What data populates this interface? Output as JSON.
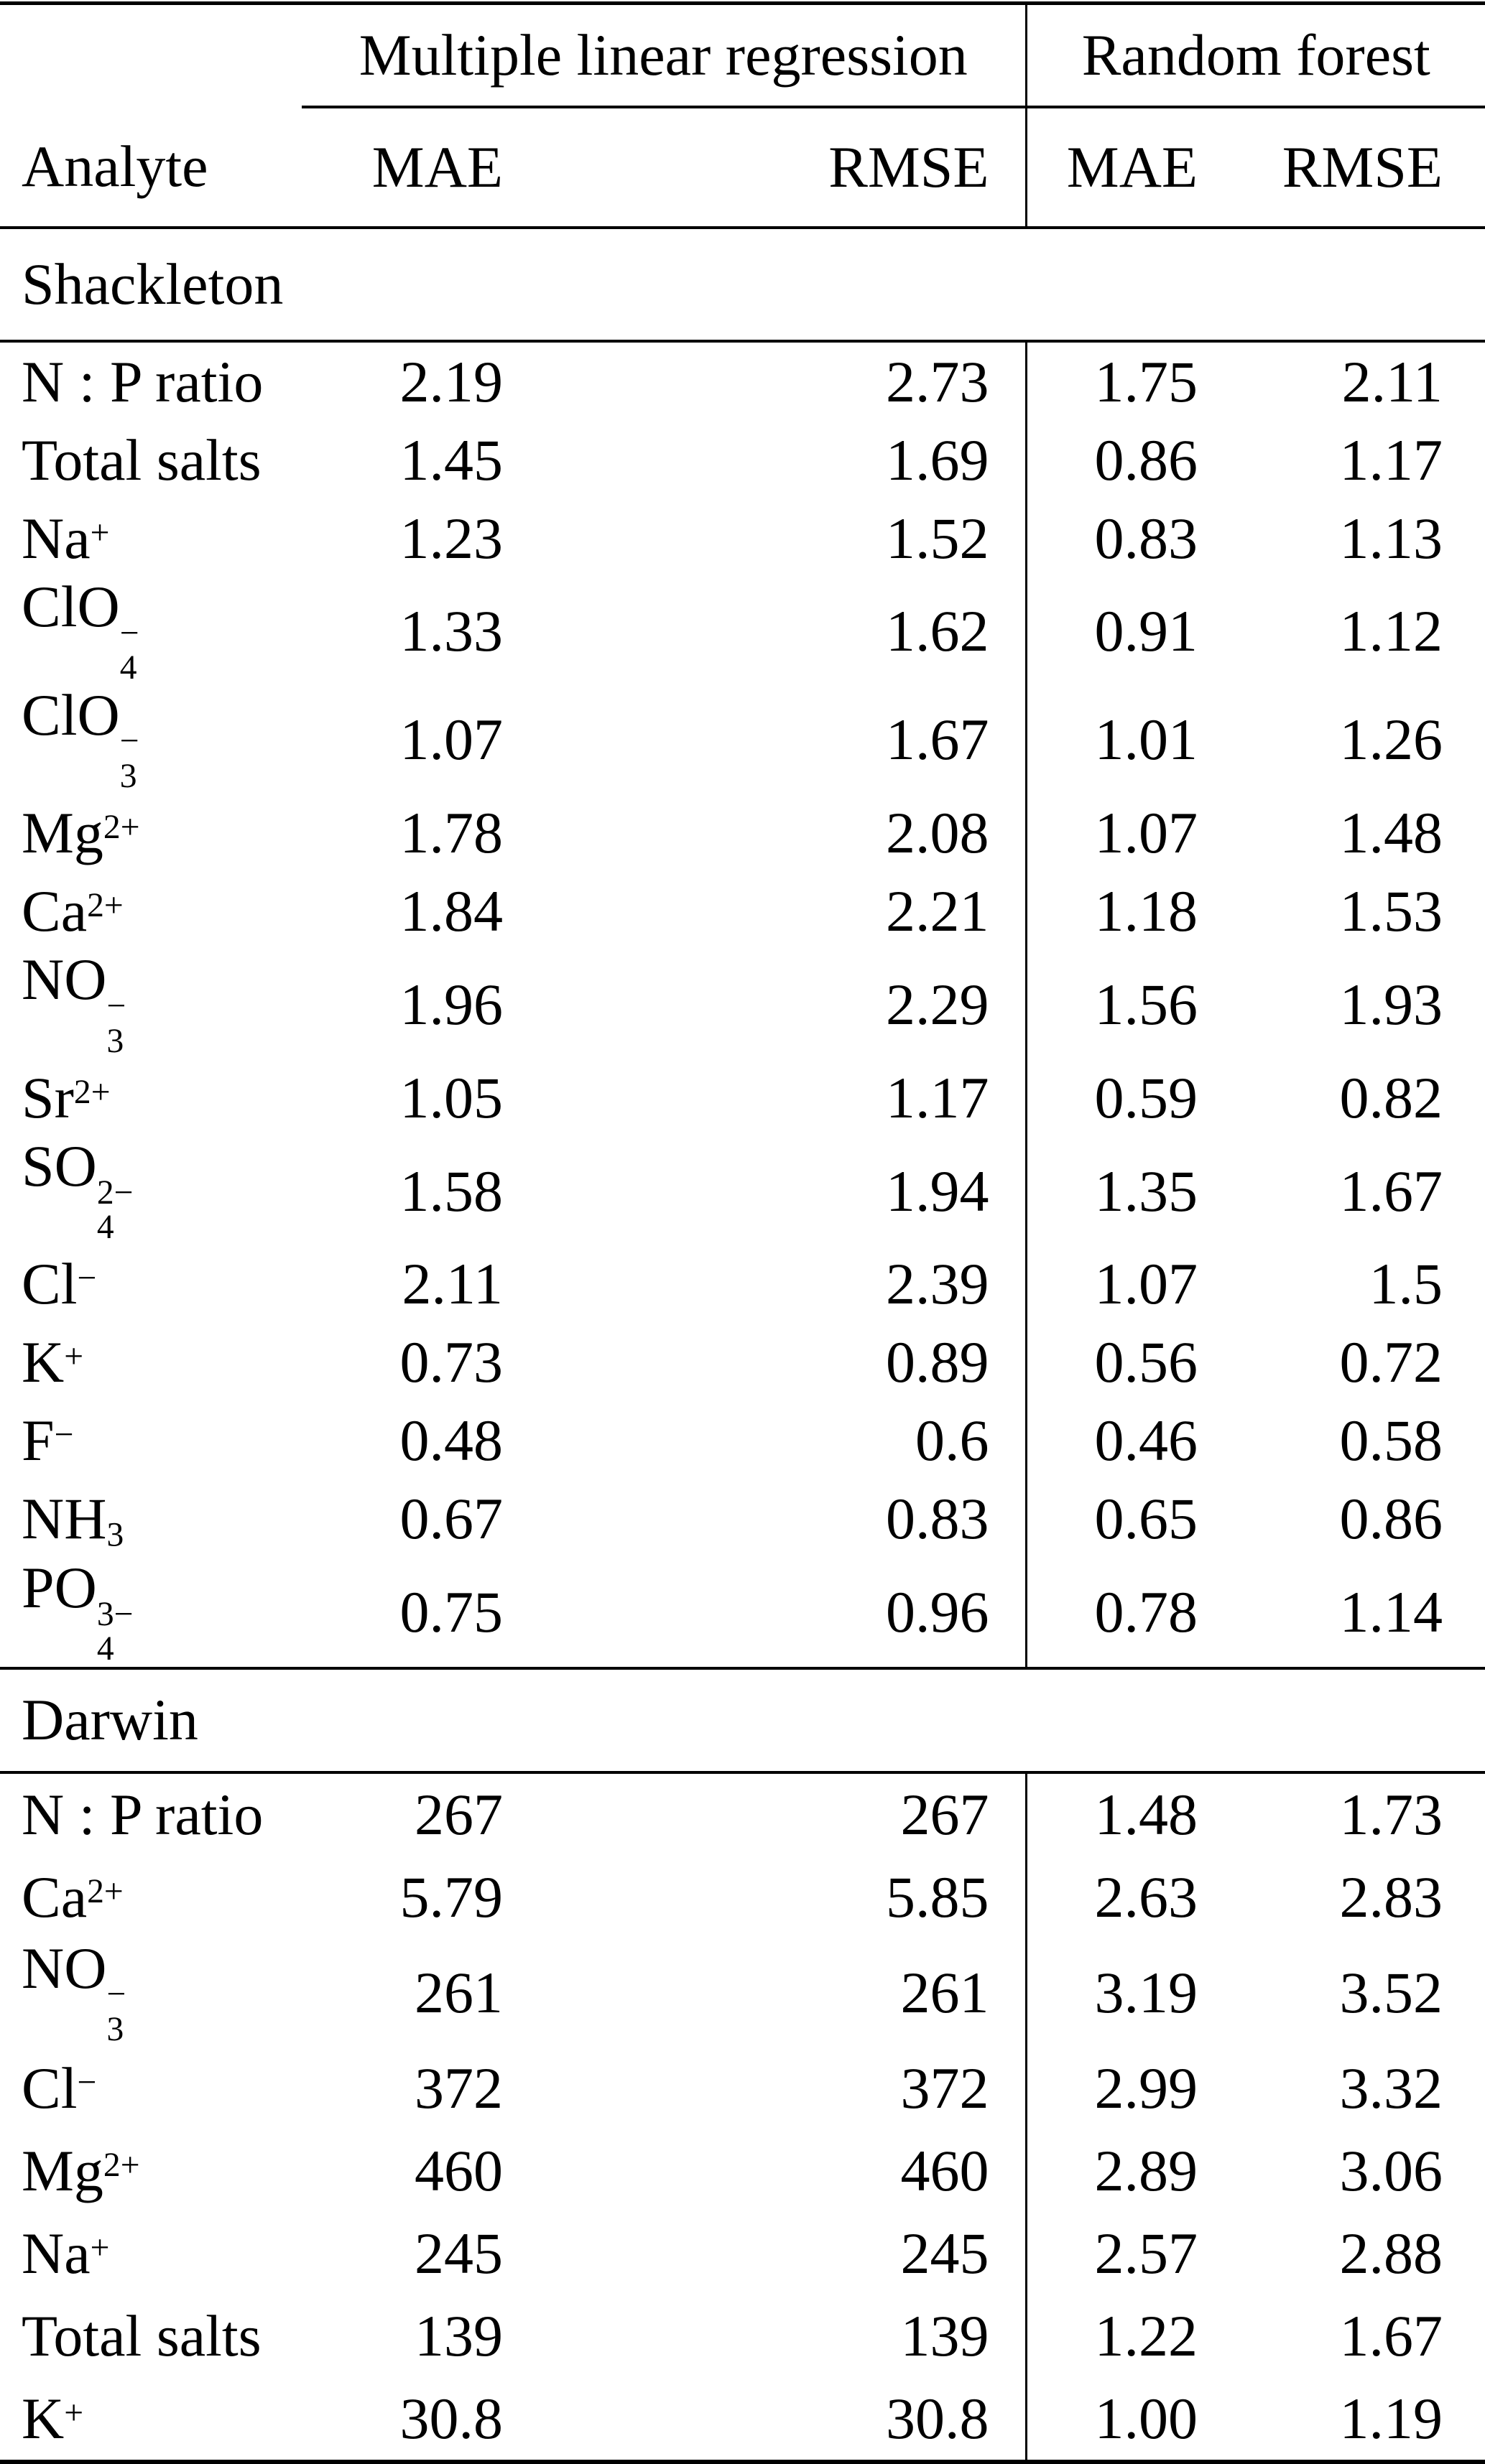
{
  "table": {
    "group_headers": {
      "mlr": "Multiple linear regression",
      "rf": "Random forest"
    },
    "col_headers": {
      "analyte": "Analyte",
      "mlr_mae": "MAE",
      "mlr_rmse": "RMSE",
      "rf_mae": "MAE",
      "rf_rmse": "RMSE"
    },
    "colors": {
      "text": "#000000",
      "background": "#ffffff",
      "rule": "#000000"
    },
    "sections": [
      {
        "label": "Shackleton",
        "rows": [
          {
            "analyte": {
              "text": "N : P ratio"
            },
            "mlr_mae": "2.19",
            "mlr_rmse": "2.73",
            "rf_mae": "1.75",
            "rf_rmse": "2.11"
          },
          {
            "analyte": {
              "text": "Total salts"
            },
            "mlr_mae": "1.45",
            "mlr_rmse": "1.69",
            "rf_mae": "0.86",
            "rf_rmse": "1.17"
          },
          {
            "analyte": {
              "text": "Na",
              "sup": "+"
            },
            "mlr_mae": "1.23",
            "mlr_rmse": "1.52",
            "rf_mae": "0.83",
            "rf_rmse": "1.13"
          },
          {
            "analyte": {
              "text": "ClO",
              "sub": "4",
              "sup": "−"
            },
            "mlr_mae": "1.33",
            "mlr_rmse": "1.62",
            "rf_mae": "0.91",
            "rf_rmse": "1.12"
          },
          {
            "analyte": {
              "text": "ClO",
              "sub": "3",
              "sup": "−"
            },
            "mlr_mae": "1.07",
            "mlr_rmse": "1.67",
            "rf_mae": "1.01",
            "rf_rmse": "1.26"
          },
          {
            "analyte": {
              "text": "Mg",
              "sup": "2+"
            },
            "mlr_mae": "1.78",
            "mlr_rmse": "2.08",
            "rf_mae": "1.07",
            "rf_rmse": "1.48"
          },
          {
            "analyte": {
              "text": "Ca",
              "sup": "2+"
            },
            "mlr_mae": "1.84",
            "mlr_rmse": "2.21",
            "rf_mae": "1.18",
            "rf_rmse": "1.53"
          },
          {
            "analyte": {
              "text": "NO",
              "sub": "3",
              "sup": "−"
            },
            "mlr_mae": "1.96",
            "mlr_rmse": "2.29",
            "rf_mae": "1.56",
            "rf_rmse": "1.93"
          },
          {
            "analyte": {
              "text": "Sr",
              "sup": "2+"
            },
            "mlr_mae": "1.05",
            "mlr_rmse": "1.17",
            "rf_mae": "0.59",
            "rf_rmse": "0.82"
          },
          {
            "analyte": {
              "text": "SO",
              "sub": "4",
              "sup": "2−"
            },
            "mlr_mae": "1.58",
            "mlr_rmse": "1.94",
            "rf_mae": "1.35",
            "rf_rmse": "1.67"
          },
          {
            "analyte": {
              "text": "Cl",
              "sup": "−"
            },
            "mlr_mae": "2.11",
            "mlr_rmse": "2.39",
            "rf_mae": "1.07",
            "rf_rmse": "1.5"
          },
          {
            "analyte": {
              "text": "K",
              "sup": "+"
            },
            "mlr_mae": "0.73",
            "mlr_rmse": "0.89",
            "rf_mae": "0.56",
            "rf_rmse": "0.72"
          },
          {
            "analyte": {
              "text": "F",
              "sup": "−"
            },
            "mlr_mae": "0.48",
            "mlr_rmse": "0.6",
            "rf_mae": "0.46",
            "rf_rmse": "0.58"
          },
          {
            "analyte": {
              "text": "NH",
              "sub": "3"
            },
            "mlr_mae": "0.67",
            "mlr_rmse": "0.83",
            "rf_mae": "0.65",
            "rf_rmse": "0.86"
          },
          {
            "analyte": {
              "text": "PO",
              "sub": "4",
              "sup": "3−"
            },
            "mlr_mae": "0.75",
            "mlr_rmse": "0.96",
            "rf_mae": "0.78",
            "rf_rmse": "1.14"
          }
        ]
      },
      {
        "label": "Darwin",
        "rows": [
          {
            "analyte": {
              "text": "N : P ratio"
            },
            "mlr_mae": "267",
            "mlr_rmse": "267",
            "rf_mae": "1.48",
            "rf_rmse": "1.73"
          },
          {
            "analyte": {
              "text": "Ca",
              "sup": "2+"
            },
            "mlr_mae": "5.79",
            "mlr_rmse": "5.85",
            "rf_mae": "2.63",
            "rf_rmse": "2.83"
          },
          {
            "analyte": {
              "text": "NO",
              "sub": "3",
              "sup": "−"
            },
            "mlr_mae": "261",
            "mlr_rmse": "261",
            "rf_mae": "3.19",
            "rf_rmse": "3.52"
          },
          {
            "analyte": {
              "text": "Cl",
              "sup": "−"
            },
            "mlr_mae": "372",
            "mlr_rmse": "372",
            "rf_mae": "2.99",
            "rf_rmse": "3.32"
          },
          {
            "analyte": {
              "text": "Mg",
              "sup": "2+"
            },
            "mlr_mae": "460",
            "mlr_rmse": "460",
            "rf_mae": "2.89",
            "rf_rmse": "3.06"
          },
          {
            "analyte": {
              "text": "Na",
              "sup": "+"
            },
            "mlr_mae": "245",
            "mlr_rmse": "245",
            "rf_mae": "2.57",
            "rf_rmse": "2.88"
          },
          {
            "analyte": {
              "text": "Total salts"
            },
            "mlr_mae": "139",
            "mlr_rmse": "139",
            "rf_mae": "1.22",
            "rf_rmse": "1.67"
          },
          {
            "analyte": {
              "text": "K",
              "sup": "+"
            },
            "mlr_mae": "30.8",
            "mlr_rmse": "30.8",
            "rf_mae": "1.00",
            "rf_rmse": "1.19"
          }
        ]
      }
    ]
  }
}
